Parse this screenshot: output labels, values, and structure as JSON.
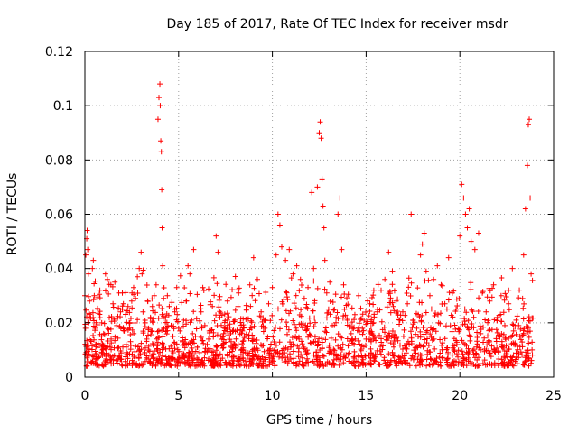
{
  "chart_data": {
    "type": "scatter",
    "title": "Day 185 of 2017, Rate Of TEC Index for receiver msdr",
    "xlabel": "GPS time / hours",
    "ylabel": "ROTI / TECUs",
    "xlim": [
      0,
      25
    ],
    "ylim": [
      0,
      0.12
    ],
    "xticks": [
      0,
      5,
      10,
      15,
      20,
      25
    ],
    "xtick_labels": [
      "0",
      "5",
      "10",
      "15",
      "20",
      "25"
    ],
    "yticks": [
      0,
      0.02,
      0.04,
      0.06,
      0.08,
      0.1,
      0.12
    ],
    "ytick_labels": [
      "0",
      "0.02",
      "0.04",
      "0.06",
      "0.08",
      "0.1",
      "0.12"
    ],
    "grid": true,
    "marker": "+",
    "color": "#ff0000",
    "series": [
      {
        "name": "ROTI",
        "points": [
          [
            0.0,
            0.03
          ],
          [
            0.05,
            0.045
          ],
          [
            0.1,
            0.051
          ],
          [
            0.12,
            0.054
          ],
          [
            0.15,
            0.047
          ],
          [
            0.2,
            0.038
          ],
          [
            0.25,
            0.028
          ],
          [
            0.3,
            0.022
          ],
          [
            0.4,
            0.04
          ],
          [
            0.45,
            0.043
          ],
          [
            0.5,
            0.03
          ],
          [
            0.55,
            0.018
          ],
          [
            0.6,
            0.012
          ],
          [
            0.7,
            0.025
          ],
          [
            0.8,
            0.032
          ],
          [
            0.9,
            0.02
          ],
          [
            1.0,
            0.016
          ],
          [
            1.1,
            0.038
          ],
          [
            1.2,
            0.036
          ],
          [
            1.3,
            0.022
          ],
          [
            1.4,
            0.014
          ],
          [
            1.5,
            0.027
          ],
          [
            1.6,
            0.035
          ],
          [
            1.7,
            0.019
          ],
          [
            1.8,
            0.011
          ],
          [
            1.9,
            0.024
          ],
          [
            2.0,
            0.031
          ],
          [
            2.1,
            0.017
          ],
          [
            2.2,
            0.012
          ],
          [
            2.3,
            0.026
          ],
          [
            2.4,
            0.02
          ],
          [
            2.5,
            0.028
          ],
          [
            2.6,
            0.033
          ],
          [
            2.7,
            0.029
          ],
          [
            2.8,
            0.037
          ],
          [
            2.9,
            0.04
          ],
          [
            3.0,
            0.046
          ],
          [
            3.05,
            0.038
          ],
          [
            3.1,
            0.024
          ],
          [
            3.2,
            0.009
          ],
          [
            3.3,
            0.014
          ],
          [
            3.4,
            0.018
          ],
          [
            3.5,
            0.022
          ],
          [
            3.6,
            0.026
          ],
          [
            3.7,
            0.03
          ],
          [
            3.8,
            0.034
          ],
          [
            3.9,
            0.095
          ],
          [
            3.95,
            0.103
          ],
          [
            4.0,
            0.108
          ],
          [
            4.02,
            0.1
          ],
          [
            4.05,
            0.087
          ],
          [
            4.08,
            0.083
          ],
          [
            4.1,
            0.069
          ],
          [
            4.12,
            0.055
          ],
          [
            4.15,
            0.041
          ],
          [
            4.2,
            0.029
          ],
          [
            4.3,
            0.022
          ],
          [
            4.4,
            0.03
          ],
          [
            4.5,
            0.026
          ],
          [
            4.6,
            0.019
          ],
          [
            4.7,
            0.015
          ],
          [
            4.8,
            0.024
          ],
          [
            4.9,
            0.033
          ],
          [
            5.0,
            0.018
          ],
          [
            5.2,
            0.013
          ],
          [
            5.4,
            0.028
          ],
          [
            5.5,
            0.041
          ],
          [
            5.6,
            0.038
          ],
          [
            5.7,
            0.021
          ],
          [
            5.8,
            0.047
          ],
          [
            5.9,
            0.015
          ],
          [
            6.0,
            0.011
          ],
          [
            6.2,
            0.024
          ],
          [
            6.4,
            0.019
          ],
          [
            6.6,
            0.014
          ],
          [
            6.8,
            0.026
          ],
          [
            7.0,
            0.052
          ],
          [
            7.1,
            0.046
          ],
          [
            7.2,
            0.022
          ],
          [
            7.4,
            0.016
          ],
          [
            7.6,
            0.028
          ],
          [
            7.8,
            0.013
          ],
          [
            8.0,
            0.021
          ],
          [
            8.2,
            0.031
          ],
          [
            8.4,
            0.017
          ],
          [
            8.6,
            0.025
          ],
          [
            8.8,
            0.034
          ],
          [
            9.0,
            0.044
          ],
          [
            9.2,
            0.036
          ],
          [
            9.4,
            0.024
          ],
          [
            9.6,
            0.018
          ],
          [
            9.8,
            0.027
          ],
          [
            10.0,
            0.033
          ],
          [
            10.2,
            0.045
          ],
          [
            10.3,
            0.06
          ],
          [
            10.4,
            0.056
          ],
          [
            10.5,
            0.048
          ],
          [
            10.7,
            0.043
          ],
          [
            10.9,
            0.047
          ],
          [
            11.1,
            0.038
          ],
          [
            11.3,
            0.041
          ],
          [
            11.5,
            0.036
          ],
          [
            11.7,
            0.029
          ],
          [
            11.9,
            0.033
          ],
          [
            12.1,
            0.068
          ],
          [
            12.2,
            0.04
          ],
          [
            12.4,
            0.07
          ],
          [
            12.5,
            0.09
          ],
          [
            12.55,
            0.094
          ],
          [
            12.6,
            0.088
          ],
          [
            12.65,
            0.073
          ],
          [
            12.7,
            0.063
          ],
          [
            12.75,
            0.055
          ],
          [
            12.8,
            0.043
          ],
          [
            12.9,
            0.031
          ],
          [
            13.0,
            0.025
          ],
          [
            13.2,
            0.019
          ],
          [
            13.4,
            0.022
          ],
          [
            13.5,
            0.06
          ],
          [
            13.6,
            0.066
          ],
          [
            13.7,
            0.047
          ],
          [
            13.8,
            0.034
          ],
          [
            14.0,
            0.021
          ],
          [
            14.2,
            0.016
          ],
          [
            14.4,
            0.023
          ],
          [
            14.6,
            0.03
          ],
          [
            14.8,
            0.018
          ],
          [
            15.0,
            0.014
          ],
          [
            15.2,
            0.027
          ],
          [
            15.4,
            0.02
          ],
          [
            15.6,
            0.024
          ],
          [
            15.8,
            0.032
          ],
          [
            16.0,
            0.036
          ],
          [
            16.2,
            0.046
          ],
          [
            16.4,
            0.039
          ],
          [
            16.6,
            0.028
          ],
          [
            16.8,
            0.021
          ],
          [
            17.0,
            0.015
          ],
          [
            17.2,
            0.027
          ],
          [
            17.4,
            0.06
          ],
          [
            17.5,
            0.021
          ],
          [
            17.7,
            0.018
          ],
          [
            17.9,
            0.045
          ],
          [
            18.0,
            0.049
          ],
          [
            18.1,
            0.053
          ],
          [
            18.2,
            0.039
          ],
          [
            18.4,
            0.03
          ],
          [
            18.6,
            0.036
          ],
          [
            18.8,
            0.041
          ],
          [
            19.0,
            0.034
          ],
          [
            19.2,
            0.027
          ],
          [
            19.4,
            0.044
          ],
          [
            19.6,
            0.031
          ],
          [
            19.8,
            0.025
          ],
          [
            20.0,
            0.052
          ],
          [
            20.1,
            0.071
          ],
          [
            20.2,
            0.066
          ],
          [
            20.3,
            0.06
          ],
          [
            20.4,
            0.055
          ],
          [
            20.5,
            0.062
          ],
          [
            20.6,
            0.05
          ],
          [
            20.8,
            0.047
          ],
          [
            21.0,
            0.053
          ],
          [
            21.2,
            0.031
          ],
          [
            21.4,
            0.024
          ],
          [
            21.6,
            0.028
          ],
          [
            21.8,
            0.034
          ],
          [
            22.0,
            0.022
          ],
          [
            22.2,
            0.03
          ],
          [
            22.4,
            0.019
          ],
          [
            22.6,
            0.027
          ],
          [
            22.8,
            0.04
          ],
          [
            23.0,
            0.021
          ],
          [
            23.2,
            0.015
          ],
          [
            23.4,
            0.045
          ],
          [
            23.5,
            0.062
          ],
          [
            23.6,
            0.078
          ],
          [
            23.65,
            0.093
          ],
          [
            23.7,
            0.095
          ],
          [
            23.75,
            0.066
          ],
          [
            23.8,
            0.038
          ],
          [
            23.85,
            0.01
          ]
        ]
      }
    ]
  }
}
